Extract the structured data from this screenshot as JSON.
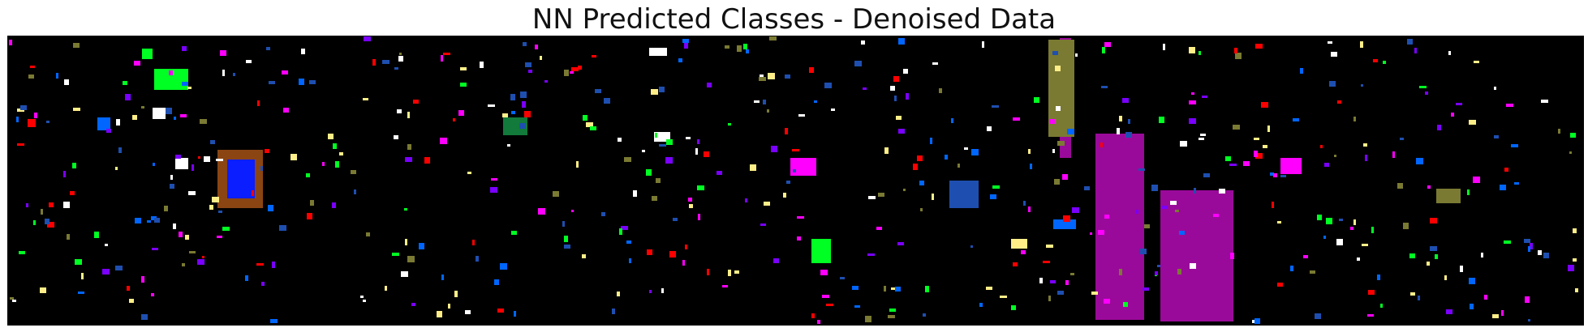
{
  "chart_data": {
    "type": "heatmap",
    "title": "NN Predicted Classes - Denoised Data",
    "xlabel": "",
    "ylabel": "",
    "axes_visible": false,
    "grid": false,
    "background_color": "#000000",
    "palette": {
      "red": "#ff0000",
      "green": "#00ff22",
      "dark_green": "#127a3a",
      "blue": "#0066ff",
      "deep_blue": "#0b1eff",
      "navy": "#1e4fb0",
      "purple": "#7a00ff",
      "magenta": "#ff00ff",
      "dark_magenta": "#9a0a9a",
      "yellow": "#ffee88",
      "olive": "#7a7a33",
      "white": "#ffffff",
      "brown": "#8b4513"
    },
    "pixel_grid": {
      "width": 1941,
      "height": 356
    },
    "regions": [
      {
        "cls": "green",
        "x": [
          180,
          222
        ],
        "y": [
          40,
          66
        ]
      },
      {
        "cls": "green",
        "x": [
          165,
          178
        ],
        "y": [
          15,
          28
        ]
      },
      {
        "cls": "dark_green",
        "x": [
          610,
          640
        ],
        "y": [
          100,
          122
        ]
      },
      {
        "cls": "brown",
        "x": [
          258,
          314
        ],
        "y": [
          140,
          212
        ]
      },
      {
        "cls": "deep_blue",
        "x": [
          270,
          304
        ],
        "y": [
          152,
          200
        ]
      },
      {
        "cls": "blue",
        "x": [
          110,
          126
        ],
        "y": [
          100,
          116
        ]
      },
      {
        "cls": "white",
        "x": [
          178,
          194
        ],
        "y": [
          88,
          102
        ]
      },
      {
        "cls": "white",
        "x": [
          206,
          222
        ],
        "y": [
          150,
          164
        ]
      },
      {
        "cls": "white",
        "x": [
          790,
          812
        ],
        "y": [
          14,
          24
        ]
      },
      {
        "cls": "white",
        "x": [
          796,
          816
        ],
        "y": [
          118,
          130
        ]
      },
      {
        "cls": "white",
        "x": [
          68,
          76
        ],
        "y": [
          204,
          212
        ]
      },
      {
        "cls": "red",
        "x": [
          24,
          34
        ],
        "y": [
          102,
          112
        ]
      },
      {
        "cls": "magenta",
        "x": [
          964,
          996
        ],
        "y": [
          150,
          172
        ]
      },
      {
        "cls": "magenta",
        "x": [
          1568,
          1594
        ],
        "y": [
          150,
          170
        ]
      },
      {
        "cls": "magenta",
        "x": [
          1486,
          1500
        ],
        "y": [
          190,
          200
        ]
      },
      {
        "cls": "blue",
        "x": [
          1288,
          1316
        ],
        "y": [
          226,
          238
        ]
      },
      {
        "cls": "yellow",
        "x": [
          1340,
          1352
        ],
        "y": [
          226,
          248
        ]
      },
      {
        "cls": "yellow",
        "x": [
          1236,
          1256
        ],
        "y": [
          250,
          262
        ]
      },
      {
        "cls": "green",
        "x": [
          990,
          1014
        ],
        "y": [
          250,
          280
        ]
      },
      {
        "cls": "olive",
        "x": [
          1760,
          1790
        ],
        "y": [
          188,
          206
        ]
      },
      {
        "cls": "dark_magenta",
        "x": [
          1296,
          1310
        ],
        "y": [
          2,
          150
        ]
      },
      {
        "cls": "dark_magenta",
        "x": [
          1340,
          1400
        ],
        "y": [
          120,
          350
        ]
      },
      {
        "cls": "dark_magenta",
        "x": [
          1420,
          1510
        ],
        "y": [
          190,
          352
        ]
      },
      {
        "cls": "navy",
        "x": [
          1160,
          1196
        ],
        "y": [
          178,
          212
        ]
      },
      {
        "cls": "olive",
        "x": [
          1282,
          1314
        ],
        "y": [
          4,
          124
        ]
      }
    ],
    "scatter_classes": [
      "red",
      "green",
      "blue",
      "purple",
      "magenta",
      "yellow",
      "olive",
      "white",
      "navy"
    ]
  }
}
